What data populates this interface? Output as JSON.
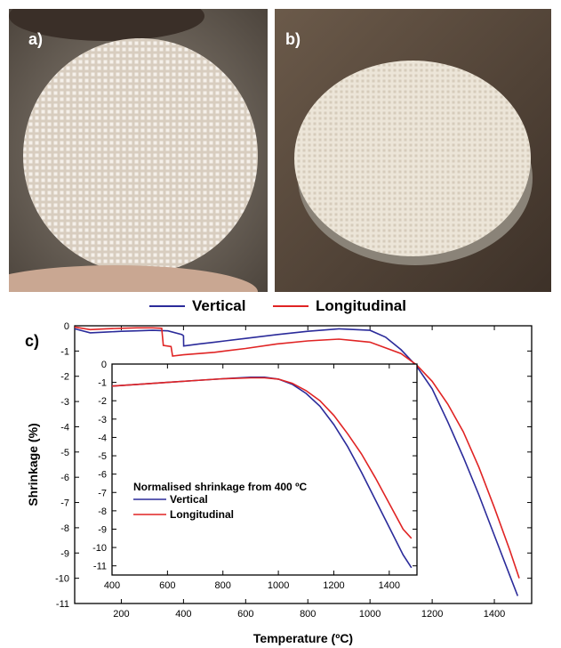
{
  "panels": {
    "a_label": "a)",
    "b_label": "b)",
    "c_label": "c)"
  },
  "colors": {
    "vertical": "#2b2b9a",
    "longitudinal": "#e02424",
    "photo_a_bg": "#6a6259",
    "photo_a_disc": "#d9cfc3",
    "photo_b_bg": "#5b4a3c",
    "photo_b_disc": "#f1ece2"
  },
  "legend": {
    "vertical": "Vertical",
    "longitudinal": "Longitudinal"
  },
  "chart_data": [
    {
      "type": "line",
      "role": "main",
      "xlabel": "Temperature (ºC)",
      "ylabel": "Shrinkage (%)",
      "xlim": [
        50,
        1520
      ],
      "ylim": [
        -11,
        0
      ],
      "xticks": [
        200,
        400,
        600,
        800,
        1000,
        1200,
        1400
      ],
      "yticks": [
        0,
        -1,
        -2,
        -3,
        -4,
        -5,
        -6,
        -7,
        -8,
        -9,
        -10,
        -11
      ],
      "series": [
        {
          "name": "Vertical",
          "x": [
            50,
            100,
            150,
            200,
            250,
            300,
            350,
            395,
            400,
            400.5,
            450,
            500,
            600,
            700,
            800,
            900,
            1000,
            1050,
            1100,
            1150,
            1200,
            1250,
            1300,
            1350,
            1400,
            1450,
            1475
          ],
          "y": [
            -0.12,
            -0.28,
            -0.25,
            -0.22,
            -0.2,
            -0.18,
            -0.2,
            -0.35,
            -0.4,
            -0.8,
            -0.72,
            -0.65,
            -0.5,
            -0.35,
            -0.22,
            -0.12,
            -0.18,
            -0.45,
            -0.95,
            -1.6,
            -2.5,
            -3.8,
            -5.2,
            -6.7,
            -8.3,
            -9.9,
            -10.7
          ]
        },
        {
          "name": "Longitudinal",
          "x": [
            50,
            100,
            150,
            200,
            250,
            300,
            330,
            335,
            360,
            365,
            400,
            500,
            600,
            700,
            800,
            900,
            1000,
            1100,
            1150,
            1200,
            1250,
            1300,
            1350,
            1400,
            1450,
            1480
          ],
          "y": [
            -0.05,
            -0.15,
            -0.12,
            -0.1,
            -0.08,
            -0.08,
            -0.1,
            -0.78,
            -0.82,
            -1.2,
            -1.15,
            -1.05,
            -0.9,
            -0.72,
            -0.6,
            -0.53,
            -0.65,
            -1.1,
            -1.55,
            -2.2,
            -3.1,
            -4.2,
            -5.6,
            -7.2,
            -8.9,
            -10.0
          ]
        }
      ]
    },
    {
      "type": "line",
      "role": "inset",
      "title": "Normalised shrinkage from 400 ºC",
      "xlim": [
        400,
        1500
      ],
      "ylim": [
        -11.5,
        0
      ],
      "xticks": [
        400,
        600,
        800,
        1000,
        1200,
        1400
      ],
      "yticks": [
        0,
        -1,
        -2,
        -3,
        -4,
        -5,
        -6,
        -7,
        -8,
        -9,
        -10,
        -11
      ],
      "series": [
        {
          "name": "Vertical",
          "x": [
            400,
            500,
            600,
            700,
            800,
            900,
            950,
            1000,
            1050,
            1100,
            1150,
            1200,
            1250,
            1300,
            1350,
            1400,
            1450,
            1480
          ],
          "y": [
            -1.2,
            -1.1,
            -1.0,
            -0.9,
            -0.8,
            -0.72,
            -0.72,
            -0.82,
            -1.1,
            -1.6,
            -2.3,
            -3.3,
            -4.5,
            -5.9,
            -7.4,
            -8.9,
            -10.4,
            -11.1
          ]
        },
        {
          "name": "Longitudinal",
          "x": [
            400,
            500,
            600,
            700,
            800,
            900,
            950,
            1000,
            1050,
            1100,
            1150,
            1200,
            1250,
            1300,
            1350,
            1400,
            1450,
            1480
          ],
          "y": [
            -1.2,
            -1.1,
            -1.0,
            -0.9,
            -0.8,
            -0.75,
            -0.75,
            -0.82,
            -1.05,
            -1.45,
            -2.0,
            -2.8,
            -3.8,
            -4.9,
            -6.2,
            -7.6,
            -9.0,
            -9.5
          ]
        }
      ]
    }
  ]
}
